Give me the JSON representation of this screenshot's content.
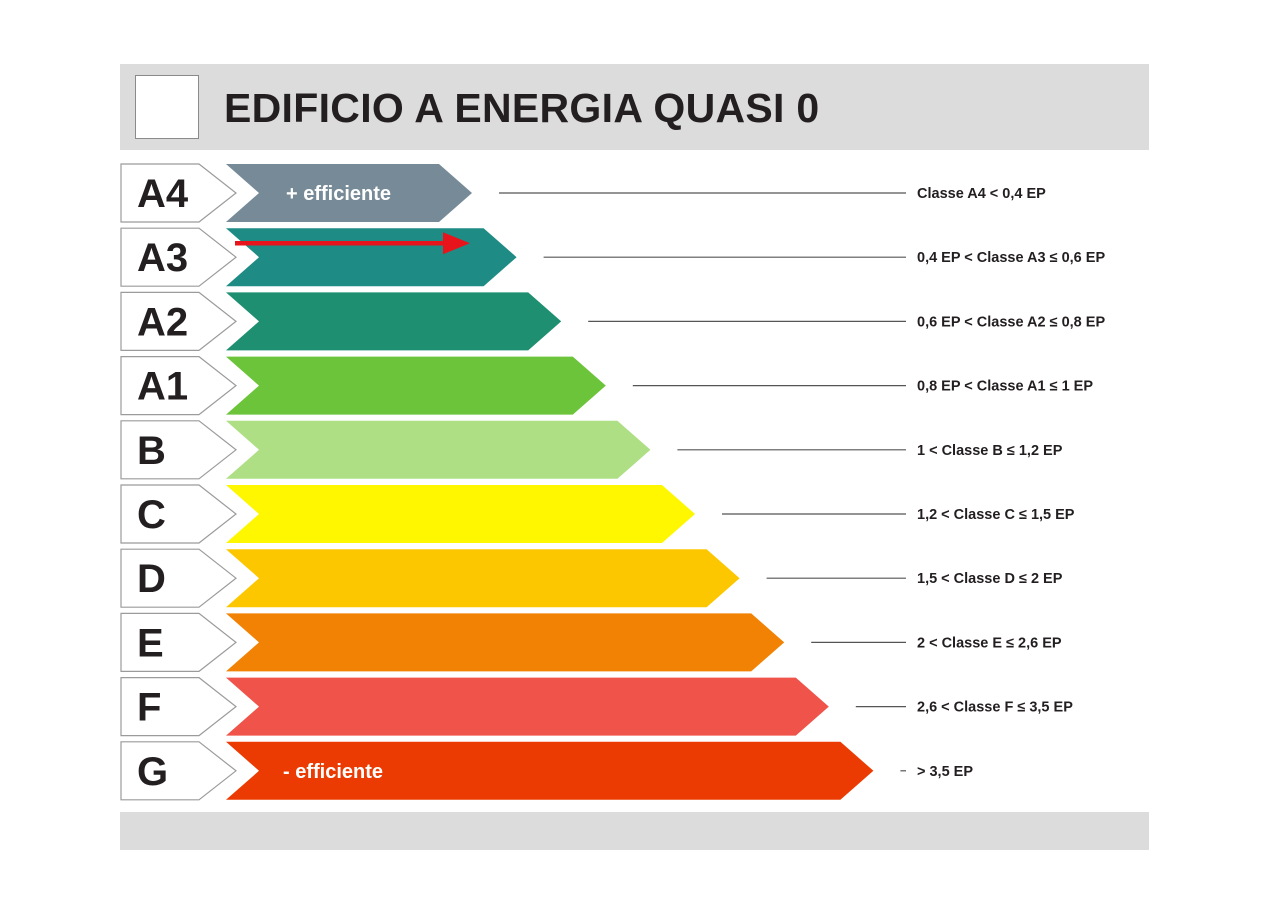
{
  "header": {
    "title": "EDIFICIO A ENERGIA QUASI 0"
  },
  "classes": [
    {
      "letter": "A4",
      "color": "#778a98",
      "caption": "+ efficiente",
      "range": "Classe A4 < 0,4 EP"
    },
    {
      "letter": "A3",
      "color": "#1e8c85",
      "caption": "",
      "range": "0,4 EP < Classe A3 ≤ 0,6 EP"
    },
    {
      "letter": "A2",
      "color": "#1e8f70",
      "caption": "",
      "range": "0,6 EP < Classe A2 ≤ 0,8 EP"
    },
    {
      "letter": "A1",
      "color": "#6cc43a",
      "caption": "",
      "range": "0,8 EP < Classe A1 ≤ 1 EP"
    },
    {
      "letter": "B",
      "color": "#aedf85",
      "caption": "",
      "range": "1 < Classe B ≤ 1,2 EP"
    },
    {
      "letter": "C",
      "color": "#fef700",
      "caption": "",
      "range": "1,2 < Classe C ≤ 1,5 EP"
    },
    {
      "letter": "D",
      "color": "#fdc700",
      "caption": "",
      "range": "1,5 < Classe D ≤ 2 EP"
    },
    {
      "letter": "E",
      "color": "#f28204",
      "caption": "",
      "range": "2 < Classe E ≤ 2,6 EP"
    },
    {
      "letter": "F",
      "color": "#ef5349",
      "caption": "",
      "range": "2,6 < Classe F ≤ 3,5 EP"
    },
    {
      "letter": "G",
      "color": "#eb3b02",
      "caption": "- efficiente",
      "range": "> 3,5 EP"
    }
  ],
  "indicator": {
    "class": "A3",
    "color": "#e8141c"
  }
}
